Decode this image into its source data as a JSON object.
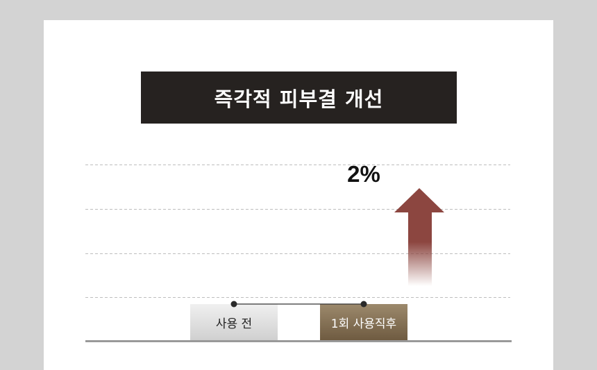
{
  "title": "즉각적 피부결 개선",
  "chart_data": {
    "type": "bar",
    "categories": [
      "사용 전",
      "1회 사용직후"
    ],
    "annotation": "2%",
    "grid": true,
    "colors": {
      "before": "#d9d9d9",
      "after": "#7f6b50",
      "arrow": "#8c4640",
      "title_bg": "#262220"
    }
  }
}
